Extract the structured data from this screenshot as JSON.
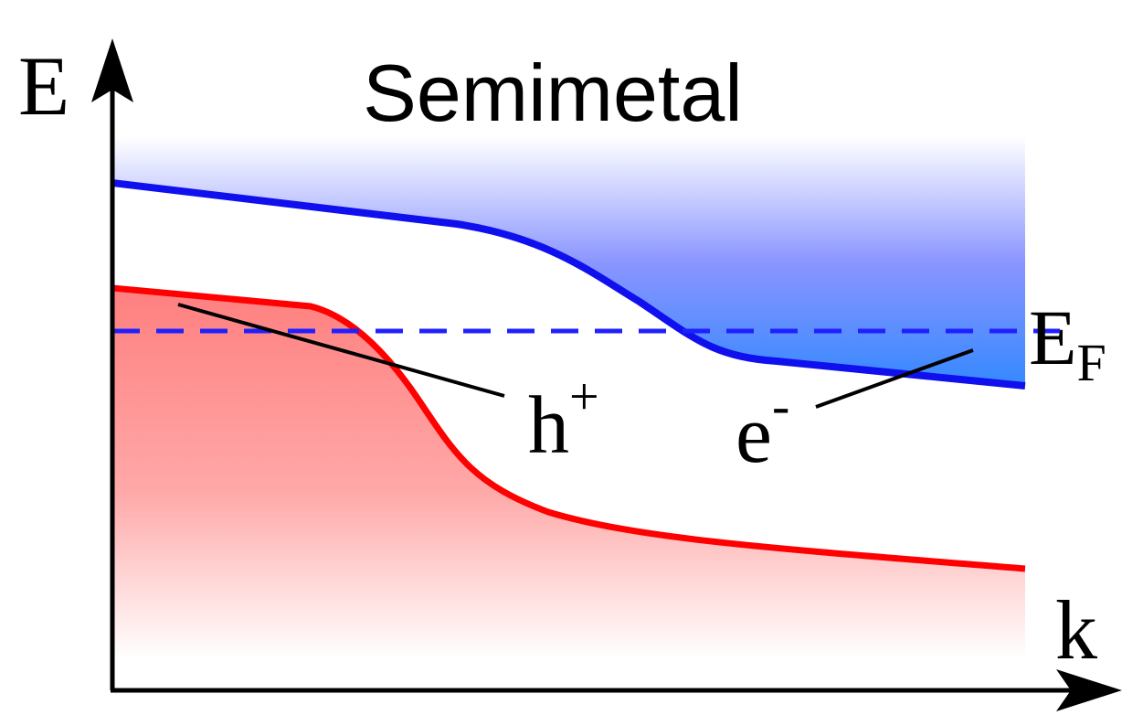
{
  "title": "Semimetal",
  "axes": {
    "y_label": "E",
    "x_label": "k"
  },
  "fermi_level": {
    "label": "E",
    "subscript": "F"
  },
  "labels": [
    {
      "text": "h",
      "superscript": "+"
    },
    {
      "text": "e",
      "superscript": "-"
    }
  ]
}
